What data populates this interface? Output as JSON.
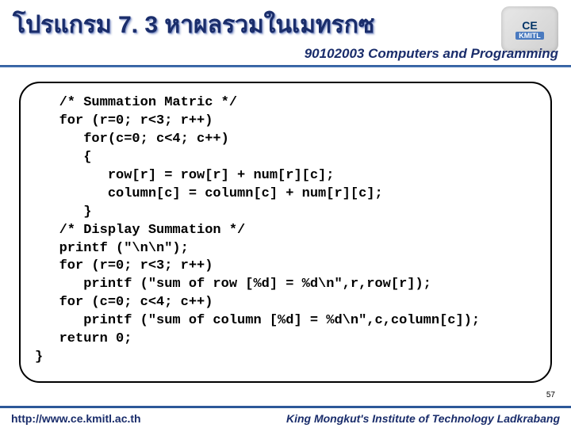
{
  "header": {
    "title": "โปรแกรม  7. 3 หาผลรวมในเมทรกซ",
    "subtitle": "90102003 Computers and Programming",
    "logo": {
      "line1": "CE",
      "line2": "KMITL"
    }
  },
  "code": {
    "lines": [
      "   /* Summation Matric */",
      "   for (r=0; r<3; r++)",
      "      for(c=0; c<4; c++)",
      "      {",
      "         row[r] = row[r] + num[r][c];",
      "         column[c] = column[c] + num[r][c];",
      "      }",
      "   /* Display Summation */",
      "   printf (\"\\n\\n\");",
      "   for (r=0; r<3; r++)",
      "      printf (\"sum of row [%d] = %d\\n\",r,row[r]);",
      "   for (c=0; c<4; c++)",
      "      printf (\"sum of column [%d] = %d\\n\",c,column[c]);",
      "   return 0;",
      "}"
    ]
  },
  "page_number": "57",
  "footer": {
    "url": "http://www.ce.kmitl.ac.th",
    "institution": "King Mongkut's Institute of Technology Ladkrabang"
  }
}
